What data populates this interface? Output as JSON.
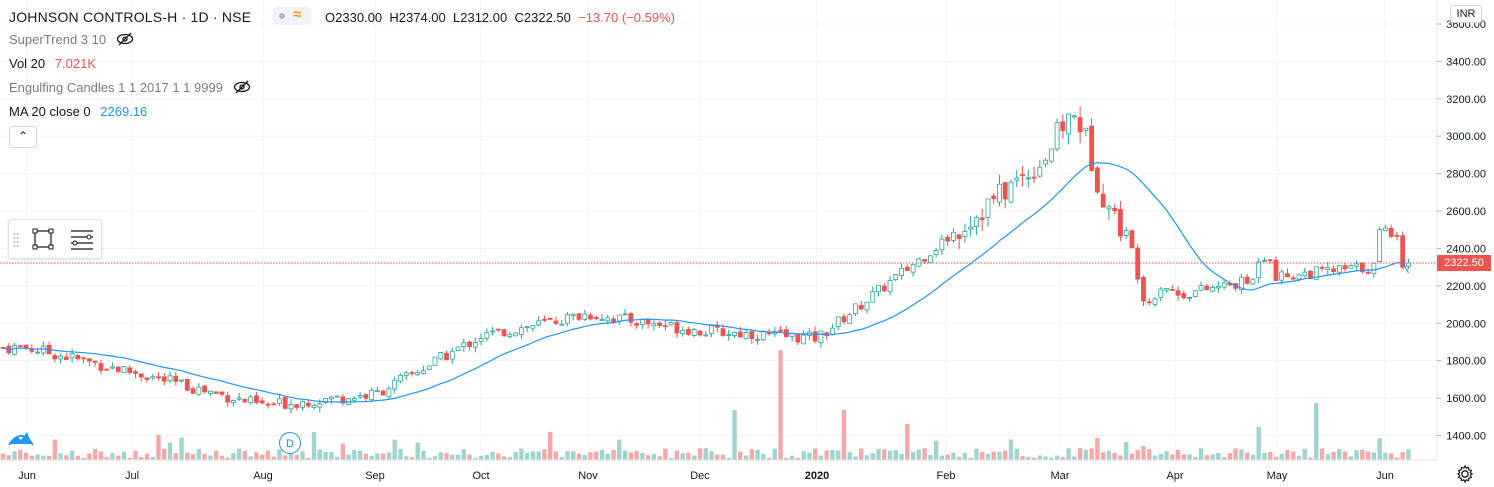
{
  "header": {
    "symbol": "JOHNSON CONTROLS-H · 1D · NSE",
    "open": "O2330.00",
    "high": "H2374.00",
    "low": "L2312.00",
    "close": "C2322.50",
    "change": "−13.70 (−0.59%)"
  },
  "indicators": {
    "supertrend": {
      "label": "SuperTrend 3 10"
    },
    "vol": {
      "label": "Vol 20",
      "value": "7.021K"
    },
    "engulfing": {
      "label": "Engulfing Candles 1 1 2017 1 1 9999"
    },
    "ma": {
      "label": "MA 20 close 0",
      "value": "2269.16"
    }
  },
  "collapse_symbol": "⌃",
  "currency": "INR",
  "last_price_tag": "2322.50",
  "dividend_marker": "D",
  "colors": {
    "up": "#26a69a",
    "down": "#ef5350",
    "ma": "#2196f3",
    "up_volume": "#9fd4cf",
    "down_volume": "#f4a9a8",
    "grid": "#f0f3fa",
    "price_line": "#ef5350"
  },
  "icons": [
    "eye-off-icon",
    "rectangle-tool-icon",
    "lines-tool-icon",
    "tradingview-logo-icon",
    "settings-gear-icon",
    "collapse-arrow-icon"
  ],
  "chart_data": {
    "type": "candlestick",
    "y_axis_labels": [
      "3600.00",
      "3400.00",
      "3200.00",
      "3000.00",
      "2800.00",
      "2600.00",
      "2400.00",
      "2200.00",
      "2000.00",
      "1800.00",
      "1600.00",
      "1400.00"
    ],
    "ylim": [
      1280,
      3620
    ],
    "x_axis_labels": [
      "Jun",
      "Jul",
      "Aug",
      "Sep",
      "Oct",
      "Nov",
      "Dec",
      "2020",
      "Feb",
      "Mar",
      "Apr",
      "May",
      "Jun"
    ],
    "series": [
      {
        "name": "MA 20 close 0",
        "type": "line"
      },
      {
        "name": "Vol 20",
        "type": "histogram"
      }
    ],
    "anchor_closes": [
      {
        "month": "Jun",
        "close": 1870
      },
      {
        "month": "Jul",
        "close": 1740
      },
      {
        "month": "Aug",
        "close": 1560
      },
      {
        "month": "Sep",
        "close": 1620
      },
      {
        "month": "Oct",
        "close": 1930
      },
      {
        "month": "Nov",
        "close": 2050
      },
      {
        "month": "Dec",
        "close": 1960
      },
      {
        "month": "2020",
        "close": 1920
      },
      {
        "month": "Feb",
        "close": 2450
      },
      {
        "month": "Mar",
        "close": 2950
      },
      {
        "month": "Apr",
        "close": 2150
      },
      {
        "month": "May",
        "close": 2250
      },
      {
        "month": "Jun",
        "close": 2322.5
      }
    ],
    "last_close": 2322.5,
    "last_ma": 2269.16
  }
}
